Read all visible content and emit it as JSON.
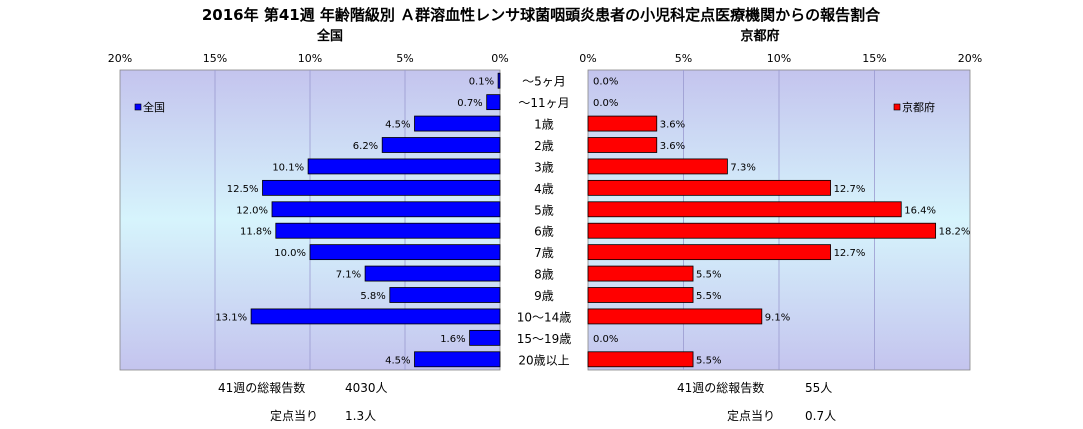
{
  "chart_data": {
    "type": "bar",
    "title": "2016年 第41週 年齢階級別 Ａ群溶血性レンサ球菌咽頭炎患者の小児科定点医療機関からの報告割合",
    "categories": [
      "～5ヶ月",
      "～11ヶ月",
      "1歳",
      "2歳",
      "3歳",
      "4歳",
      "5歳",
      "6歳",
      "7歳",
      "8歳",
      "9歳",
      "10～14歳",
      "15～19歳",
      "20歳以上"
    ],
    "x_ticks": [
      "20%",
      "15%",
      "10%",
      "5%",
      "0%"
    ],
    "xlim": [
      0,
      20
    ],
    "grid": true,
    "series": [
      {
        "name": "全国",
        "color": "#0000ff",
        "panel_title": "全国",
        "legend_label": "全国",
        "legend_placement": "top-left",
        "values": [
          0.1,
          0.7,
          4.5,
          6.2,
          10.1,
          12.5,
          12.0,
          11.8,
          10.0,
          7.1,
          5.8,
          13.1,
          1.6,
          4.5
        ],
        "labels": [
          "0.1%",
          "0.7%",
          "4.5%",
          "6.2%",
          "10.1%",
          "12.5%",
          "12.0%",
          "11.8%",
          "10.0%",
          "7.1%",
          "5.8%",
          "13.1%",
          "1.6%",
          "4.5%"
        ]
      },
      {
        "name": "京都府",
        "color": "#ff0000",
        "panel_title": "京都府",
        "legend_label": "京都府",
        "legend_placement": "top-right",
        "values": [
          0.0,
          0.0,
          3.6,
          3.6,
          7.3,
          12.7,
          16.4,
          18.2,
          12.7,
          5.5,
          5.5,
          9.1,
          0.0,
          5.5
        ],
        "labels": [
          "0.0%",
          "0.0%",
          "3.6%",
          "3.6%",
          "7.3%",
          "12.7%",
          "16.4%",
          "18.2%",
          "12.7%",
          "5.5%",
          "5.5%",
          "9.1%",
          "0.0%",
          "5.5%"
        ]
      }
    ]
  },
  "footer": {
    "national": {
      "total_label": "41週の総報告数",
      "total_value": "4030人",
      "per_site_label": "定点当り",
      "per_site_value": "1.3人"
    },
    "kyoto": {
      "total_label": "41週の総報告数",
      "total_value": "55人",
      "per_site_label": "定点当り",
      "per_site_value": "0.7人"
    }
  }
}
